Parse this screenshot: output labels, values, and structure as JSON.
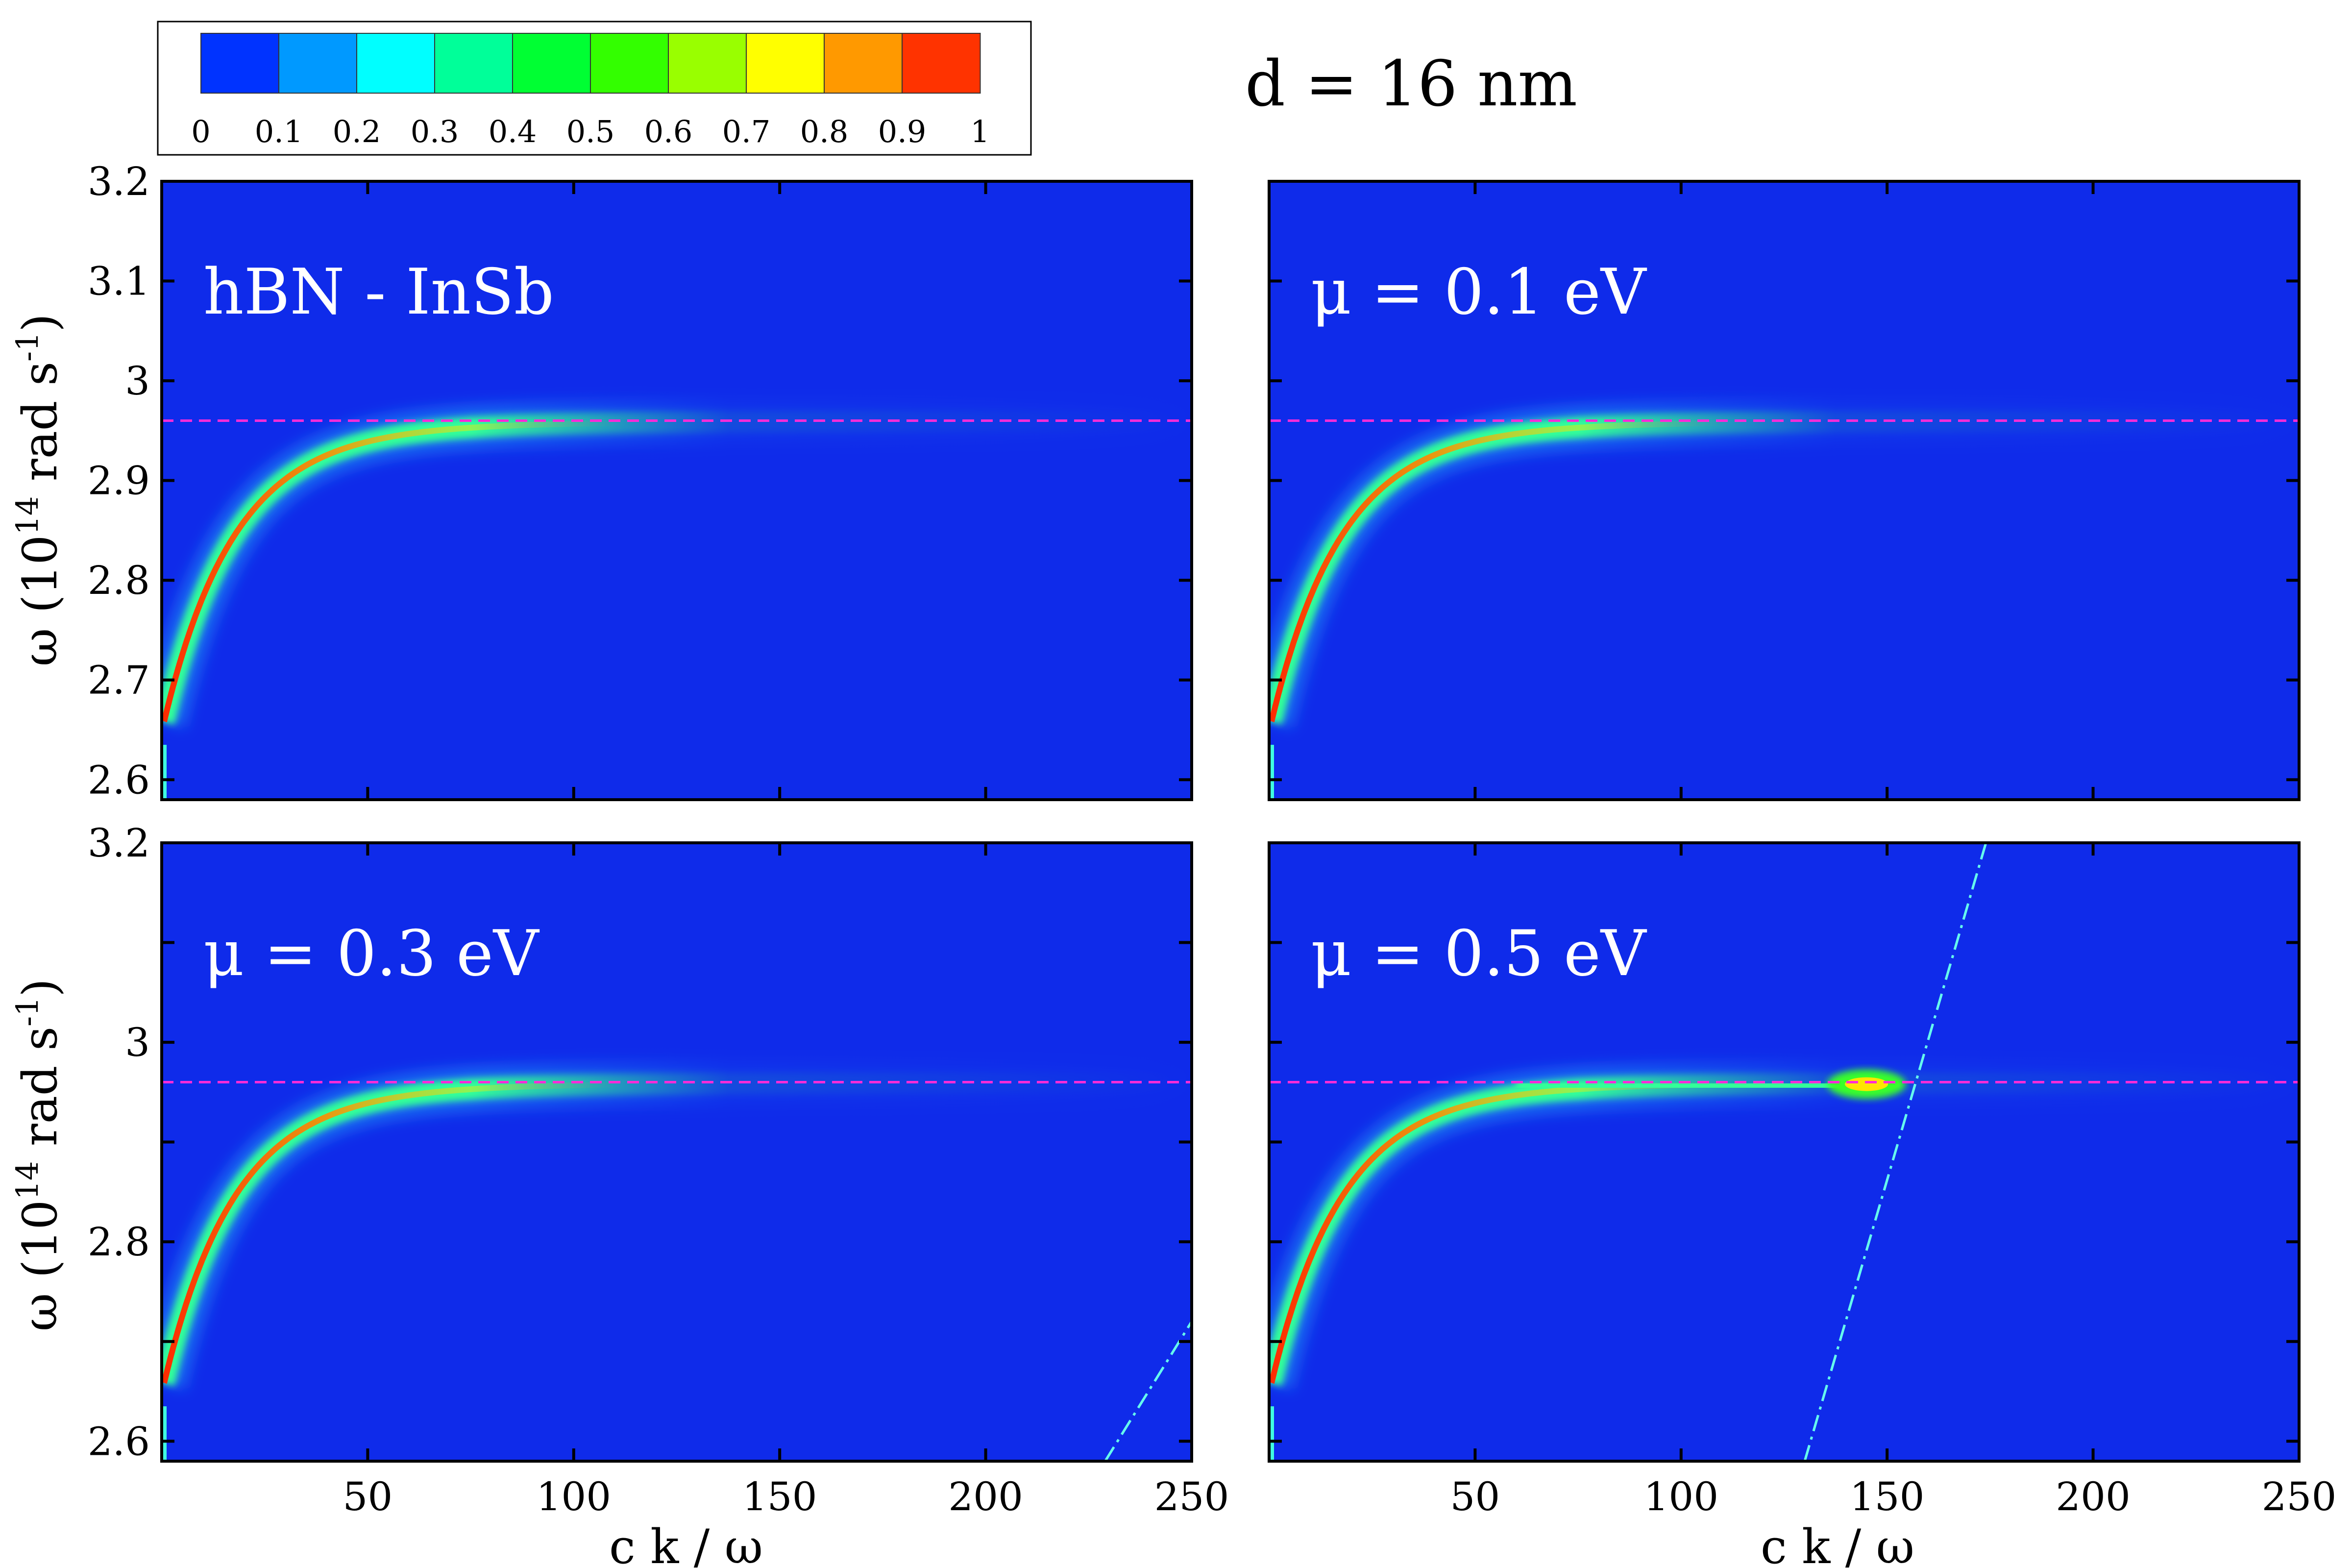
{
  "chart_data": {
    "type": "heatmap",
    "title": "d = 16 nm",
    "colormap": [
      "#0000ff",
      "#00ffff",
      "#00ff00",
      "#ffff00",
      "#ff0000"
    ],
    "background_color": "#0f2bea",
    "colorbar": {
      "range": [
        0,
        1
      ],
      "ticks": [
        "0",
        "0.1",
        "0.2",
        "0.3",
        "0.4",
        "0.5",
        "0.6",
        "0.7",
        "0.8",
        "0.9",
        "1"
      ]
    },
    "panels": [
      {
        "id": "a",
        "label": "hBN - InSb",
        "xlim": [
          0,
          250
        ],
        "ylim": [
          2.58,
          3.2
        ],
        "yticks": [
          "2.6",
          "2.7",
          "2.8",
          "2.9",
          "3",
          "3.1",
          "3.2"
        ],
        "xticks": [],
        "ylabel": "ω (10^14 rad s^-1)",
        "xlabel": "",
        "resonance_line_y": 2.96,
        "mode_curve": {
          "asymptote": 2.96,
          "amplitude": 0.3,
          "decay_scale": 17
        },
        "light_line": null,
        "hotspot": null
      },
      {
        "id": "b",
        "label": "μ = 0.1 eV",
        "xlim": [
          0,
          250
        ],
        "ylim": [
          2.58,
          3.2
        ],
        "yticks": [],
        "xticks": [],
        "ylabel": "",
        "xlabel": "",
        "resonance_line_y": 2.96,
        "mode_curve": {
          "asymptote": 2.96,
          "amplitude": 0.3,
          "decay_scale": 17
        },
        "light_line": null,
        "hotspot": null
      },
      {
        "id": "c",
        "label": "μ = 0.3 eV",
        "xlim": [
          0,
          250
        ],
        "ylim": [
          2.58,
          3.2
        ],
        "yticks": [
          "2.6",
          "2.8",
          "3",
          "3.2"
        ],
        "xticks": [
          "50",
          "100",
          "150",
          "200",
          "250"
        ],
        "ylabel": "ω (10^14 rad s^-1)",
        "xlabel": "c k / ω",
        "resonance_line_y": 2.96,
        "mode_curve": {
          "asymptote": 2.96,
          "amplitude": 0.3,
          "decay_scale": 17
        },
        "light_line": {
          "points": [
            [
              229,
              2.58
            ],
            [
              250,
              2.72
            ]
          ]
        },
        "hotspot": null
      },
      {
        "id": "d",
        "label": "μ = 0.5 eV",
        "xlim": [
          0,
          250
        ],
        "ylim": [
          2.58,
          3.2
        ],
        "yticks": [],
        "xticks": [
          "50",
          "100",
          "150",
          "200",
          "250"
        ],
        "ylabel": "",
        "xlabel": "c k / ω",
        "resonance_line_y": 2.96,
        "mode_curve": {
          "asymptote": 2.96,
          "amplitude": 0.3,
          "decay_scale": 17
        },
        "light_line": {
          "points": [
            [
              130,
              2.58
            ],
            [
              174,
              3.2
            ]
          ]
        },
        "hotspot": {
          "x": 145,
          "y": 2.958
        }
      }
    ]
  }
}
